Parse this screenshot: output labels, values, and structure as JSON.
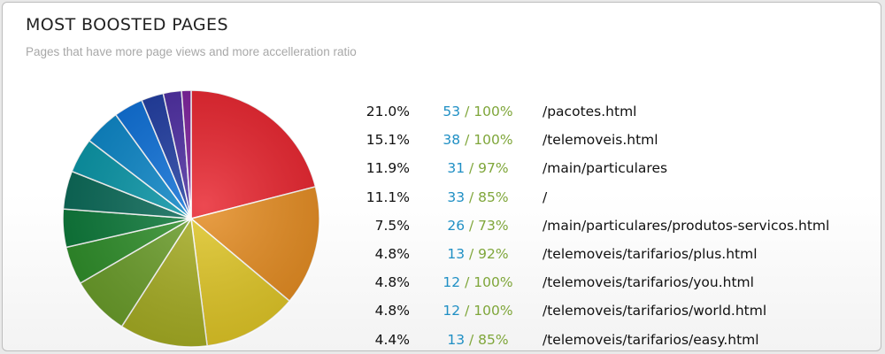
{
  "title": "MOST BOOSTED PAGES",
  "subtitle": "Pages that have more page views and more accelleration ratio",
  "chart_data": {
    "type": "pie",
    "title": "MOST BOOSTED PAGES",
    "subtitle": "Pages that have more page views and more accelleration ratio",
    "slices": [
      {
        "label": "/pacotes.html",
        "percent": 21.0,
        "views": 53,
        "accel": "100%",
        "color": "#e8212b"
      },
      {
        "label": "/telemoveis.html",
        "percent": 15.1,
        "views": 38,
        "accel": "100%",
        "color": "#e48a1e"
      },
      {
        "label": "/main/particulares",
        "percent": 11.9,
        "views": 31,
        "accel": "97%",
        "color": "#e0c624"
      },
      {
        "label": "/",
        "percent": 11.1,
        "views": 33,
        "accel": "85%",
        "color": "#a6ad22"
      },
      {
        "label": "/main/particulares/produtos-servicos.html",
        "percent": 7.5,
        "views": 26,
        "accel": "73%",
        "color": "#6b9e2a"
      },
      {
        "label": "/telemoveis/tarifarios/plus.html",
        "percent": 4.8,
        "views": 13,
        "accel": "92%",
        "color": "#2f8f2a"
      },
      {
        "label": "/telemoveis/tarifarios/you.html",
        "percent": 4.8,
        "views": 12,
        "accel": "100%",
        "color": "#0d7a3a"
      },
      {
        "label": "/telemoveis/tarifarios/world.html",
        "percent": 4.8,
        "views": 12,
        "accel": "100%",
        "color": "#0a6a58"
      },
      {
        "label": "/telemoveis/tarifarios/easy.html",
        "percent": 4.4,
        "views": 13,
        "accel": "85%",
        "color": "#0896a8"
      },
      {
        "percent": 4.6,
        "color": "#0a86c8"
      },
      {
        "percent": 3.7,
        "color": "#0b6fd8"
      },
      {
        "percent": 2.8,
        "color": "#1d3aa0"
      },
      {
        "percent": 2.3,
        "color": "#4a2aa0"
      },
      {
        "percent": 1.2,
        "color": "#7a1d9a"
      }
    ]
  }
}
